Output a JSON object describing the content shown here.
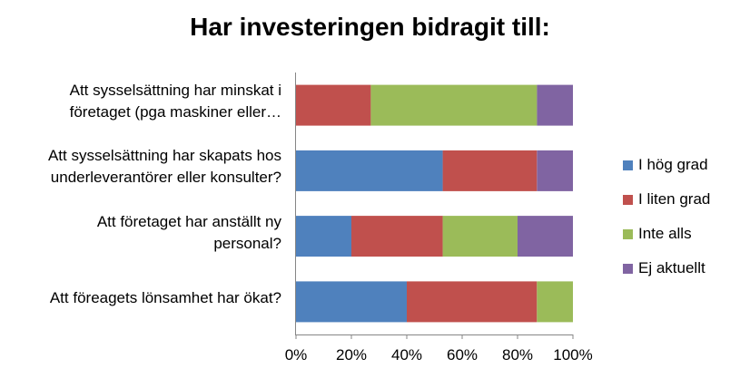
{
  "chart_data": {
    "type": "bar",
    "orientation": "horizontal",
    "stacked": "percent",
    "title": "Har investeringen bidragit till:",
    "xlabel": "",
    "ylabel": "",
    "xlim": [
      0,
      100
    ],
    "x_ticks": [
      "0%",
      "20%",
      "40%",
      "60%",
      "80%",
      "100%"
    ],
    "categories": [
      [
        "Att sysselsättning har minskat i",
        "företaget  (pga maskiner eller…"
      ],
      [
        "Att sysselsättning har skapats hos",
        "underleverantörer eller konsulter?"
      ],
      [
        "Att företaget har anställt ny",
        "personal?"
      ],
      [
        "Att föreagets lönsamhet har ökat?"
      ]
    ],
    "series": [
      {
        "name": "I hög grad",
        "color": "#4f81bd",
        "values": [
          0,
          53,
          20,
          40
        ]
      },
      {
        "name": "I liten grad",
        "color": "#c0504d",
        "values": [
          27,
          34,
          33,
          47
        ]
      },
      {
        "name": "Inte alls",
        "color": "#9bbb59",
        "values": [
          60,
          0,
          27,
          13
        ]
      },
      {
        "name": "Ej aktuellt",
        "color": "#8064a2",
        "values": [
          13,
          13,
          20,
          0
        ]
      }
    ],
    "grid": false,
    "legend_position": "right"
  }
}
